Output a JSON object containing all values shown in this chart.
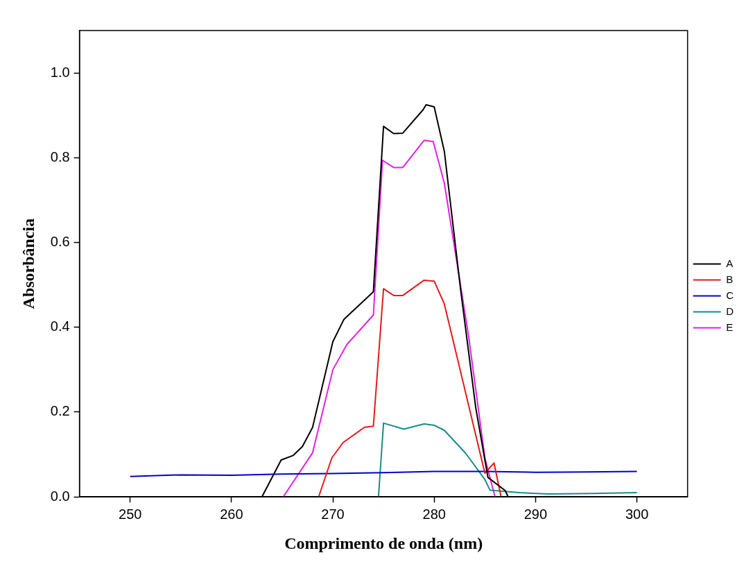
{
  "chart_data": {
    "type": "line",
    "xlabel": "Comprimento de onda (nm)",
    "ylabel": "Absorbância",
    "xlim": [
      245,
      305
    ],
    "ylim": [
      0,
      1.1
    ],
    "xticks": [
      250,
      260,
      270,
      280,
      290,
      300
    ],
    "yticks": [
      {
        "value": 0,
        "label": "0.0"
      },
      {
        "value": 0.2,
        "label": "0.2"
      },
      {
        "value": 0.4,
        "label": "0.4"
      },
      {
        "value": 0.6,
        "label": "0.6"
      },
      {
        "value": 0.8,
        "label": "0.8"
      },
      {
        "value": 1,
        "label": "1.0"
      }
    ],
    "grid": false,
    "legend": "right",
    "marker": "none",
    "line_style": "solid",
    "series": [
      {
        "name": "A",
        "color": "#000000",
        "x": [
          263.0,
          264.9,
          266.1,
          267.0,
          268.0,
          270.0,
          271.1,
          274.0,
          275.0,
          276.0,
          276.9,
          278.9,
          279.2,
          280.0,
          281.0,
          282.6,
          284.1,
          285.0,
          285.3,
          287.0,
          287.3
        ],
        "values": [
          0,
          0.087,
          0.098,
          0.119,
          0.164,
          0.366,
          0.419,
          0.484,
          0.874,
          0.857,
          0.858,
          0.913,
          0.925,
          0.92,
          0.815,
          0.49,
          0.21,
          0.087,
          0.046,
          0.015,
          0
        ]
      },
      {
        "name": "B",
        "color": "#e31a1c",
        "x": [
          268.6,
          269.9,
          271.0,
          273.1,
          274.0,
          275.0,
          276.0,
          276.9,
          279.0,
          280.0,
          281.0,
          285.0,
          285.9,
          286.6
        ],
        "values": [
          0,
          0.092,
          0.128,
          0.164,
          0.167,
          0.491,
          0.475,
          0.475,
          0.511,
          0.509,
          0.455,
          0.056,
          0.08,
          0
        ]
      },
      {
        "name": "C",
        "color": "#0000cc",
        "x": [
          250,
          255,
          260,
          265,
          270,
          275,
          280,
          285,
          290,
          295,
          300
        ],
        "values": [
          0.048,
          0.052,
          0.051,
          0.054,
          0.055,
          0.057,
          0.06,
          0.06,
          0.058,
          0.059,
          0.06
        ]
      },
      {
        "name": "D",
        "color": "#1a8a8a",
        "x": [
          274.5,
          275.0,
          277.0,
          279.0,
          280.0,
          281.0,
          283.1,
          285.0,
          285.5,
          288.4,
          291.3,
          295.7,
          300
        ],
        "values": [
          0,
          0.174,
          0.16,
          0.172,
          0.169,
          0.157,
          0.103,
          0.041,
          0.016,
          0.01,
          0.007,
          0.008,
          0.01
        ]
      },
      {
        "name": "E",
        "color": "#e020e0",
        "x": [
          265.1,
          268.0,
          270.0,
          271.4,
          274.0,
          274.9,
          276.0,
          276.9,
          279.0,
          279.9,
          281.0,
          283.4,
          285.0,
          286.0
        ],
        "values": [
          0,
          0.104,
          0.3,
          0.36,
          0.429,
          0.794,
          0.777,
          0.777,
          0.841,
          0.838,
          0.74,
          0.378,
          0.092,
          0
        ]
      }
    ]
  }
}
